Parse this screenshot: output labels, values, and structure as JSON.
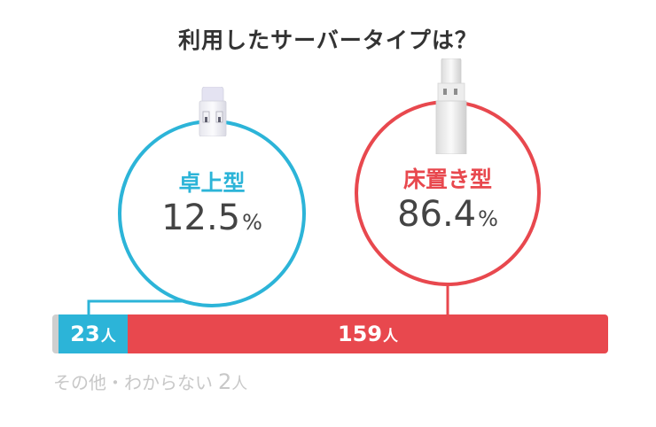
{
  "title": "利用したサーバータイプは？",
  "chart_data": {
    "type": "bar",
    "orientation": "horizontal-stacked",
    "categories": [
      "その他・わからない",
      "卓上型",
      "床置き型"
    ],
    "values": [
      2,
      23,
      159
    ],
    "percentages": {
      "卓上型": 12.5,
      "床置き型": 86.4
    },
    "unit": "人",
    "colors": {
      "その他・わからない": "#cfcfcf",
      "卓上型": "#2cb4d8",
      "床置き型": "#e8484e"
    }
  },
  "desk": {
    "label": "卓上型",
    "percent": "12.5",
    "percent_sign": "%",
    "count": "23",
    "count_unit": "人",
    "icon": "tabletop-water-server-icon"
  },
  "floor": {
    "label": "床置き型",
    "percent": "86.4",
    "percent_sign": "%",
    "count": "159",
    "count_unit": "人",
    "icon": "floor-standing-water-server-icon"
  },
  "other": {
    "label": "その他・わからない",
    "count": "2",
    "count_unit": "人"
  }
}
